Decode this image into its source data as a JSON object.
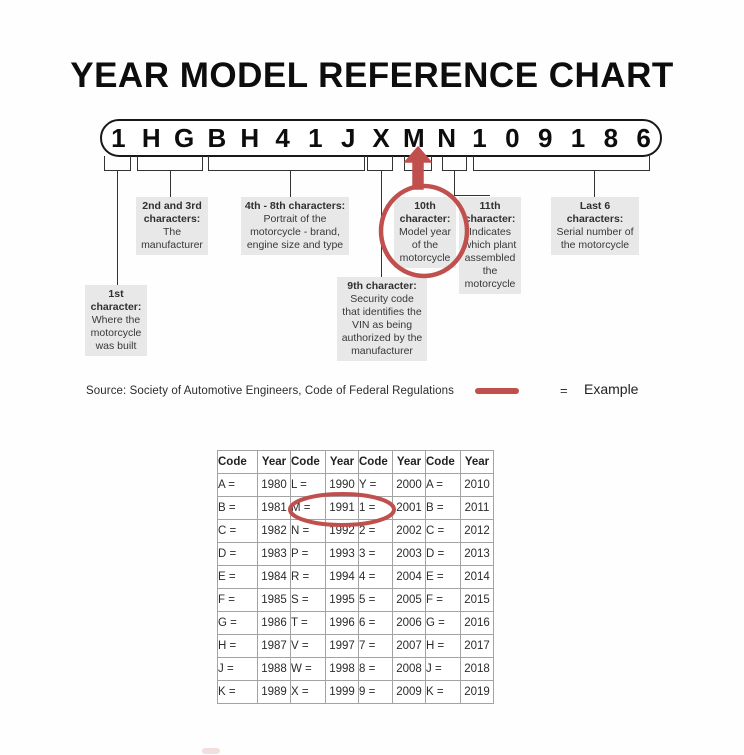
{
  "title": "YEAR MODEL REFERENCE CHART",
  "vin": {
    "characters": [
      "1",
      "H",
      "G",
      "B",
      "H",
      "4",
      "1",
      "J",
      "X",
      "M",
      "N",
      "1",
      "0",
      "9",
      "1",
      "8",
      "6"
    ]
  },
  "callouts": {
    "first": {
      "header": "1st character:",
      "body": "Where the motorcycle was built"
    },
    "second_third": {
      "header": "2nd and 3rd characters:",
      "body": "The manufacturer"
    },
    "fourth_eighth": {
      "header": "4th - 8th characters:",
      "body": "Portrait of the motorcycle - brand, engine size and type"
    },
    "ninth": {
      "header": "9th character:",
      "body": "Security code that identifies the VIN as being authorized by the manufacturer"
    },
    "tenth": {
      "header": "10th character:",
      "body": "Model year of the motorcycle"
    },
    "eleventh": {
      "header": "11th character:",
      "body": "Indicates which plant assembled the motorcycle"
    },
    "last_six": {
      "header": "Last 6 characters:",
      "body": "Serial number of the motorcycle"
    }
  },
  "source_note": "Source:  Society of Automotive Engineers, Code of Federal Regulations",
  "legend": {
    "equals": "=",
    "label": "Example"
  },
  "colors": {
    "example_red": "#c0504d",
    "callout_bg": "#e8e8e8"
  },
  "table": {
    "headers": [
      "Code",
      "Year",
      "Code",
      "Year",
      "Code",
      "Year",
      "Code",
      "Year"
    ],
    "rows": [
      [
        "A =",
        "1980",
        "L =",
        "1990",
        "Y =",
        "2000",
        "A =",
        "2010"
      ],
      [
        "B =",
        "1981",
        "M =",
        "1991",
        "1 =",
        "2001",
        "B =",
        "2011"
      ],
      [
        "C =",
        "1982",
        "N =",
        "1992",
        "2 =",
        "2002",
        "C =",
        "2012"
      ],
      [
        "D =",
        "1983",
        "P =",
        "1993",
        "3 =",
        "2003",
        "D =",
        "2013"
      ],
      [
        "E =",
        "1984",
        "R =",
        "1994",
        "4 =",
        "2004",
        "E =",
        "2014"
      ],
      [
        "F =",
        "1985",
        "S =",
        "1995",
        "5 =",
        "2005",
        "F =",
        "2015"
      ],
      [
        "G =",
        "1986",
        "T =",
        "1996",
        "6 =",
        "2006",
        "G =",
        "2016"
      ],
      [
        "H =",
        "1987",
        "V =",
        "1997",
        "7 =",
        "2007",
        "H =",
        "2017"
      ],
      [
        "J =",
        "1988",
        "W =",
        "1998",
        "8 =",
        "2008",
        "J =",
        "2018"
      ],
      [
        "K =",
        "1989",
        "X =",
        "1999",
        "9 =",
        "2009",
        "K =",
        "2019"
      ]
    ],
    "highlighted_cell": "M = 1991"
  }
}
